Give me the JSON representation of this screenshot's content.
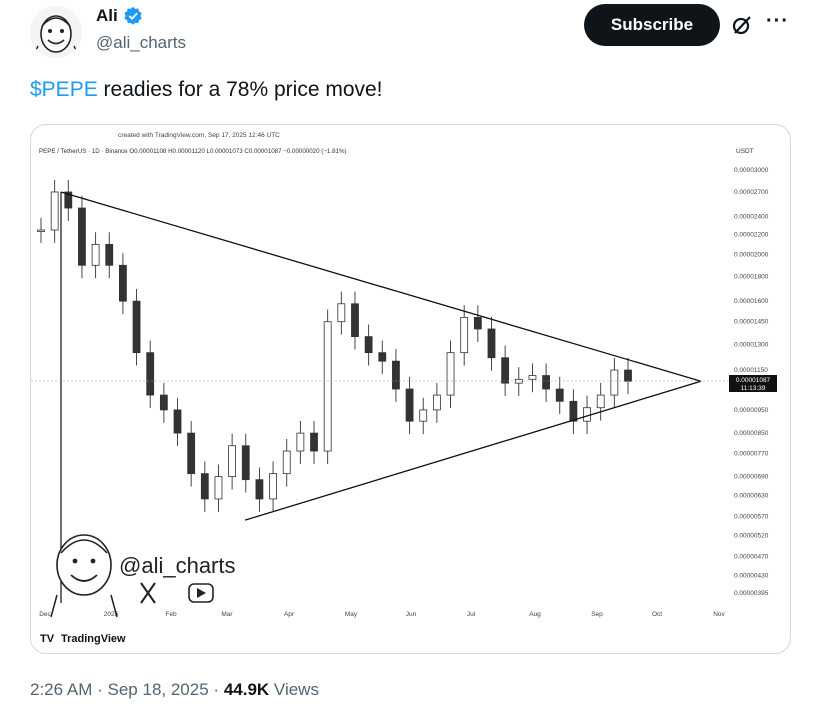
{
  "author": {
    "display_name": "Ali",
    "handle": "@ali_charts",
    "verified": true
  },
  "actions": {
    "subscribe_label": "Subscribe"
  },
  "tweet": {
    "cashtag": "$PEPE",
    "text_rest": " readies for a 78% price move!"
  },
  "meta": {
    "time": "2:26 AM",
    "separator": "·",
    "date": "Sep 18, 2025",
    "views_count": "44.9K",
    "views_label": "Views"
  },
  "chart_data": {
    "type": "line",
    "header_line": "created with TradingView.com, Sep 17, 2025 12:46 UTC",
    "symbol_line": "PEPE / TetherUS · 1D · Binance  O0.00001108  H0.00001120  L0.00001073  C0.00001087  −0.00000020 (−1.81%)",
    "currency": "USDT",
    "price_ticks": [
      "0.00003000",
      "0.00002700",
      "0.00002400",
      "0.00002200",
      "0.00002000",
      "0.00001800",
      "0.00001600",
      "0.00001450",
      "0.00001300",
      "0.00001150",
      "0.00000950",
      "0.00000850",
      "0.00000770",
      "0.00000690",
      "0.00000630",
      "0.00000570",
      "0.00000520",
      "0.00000470",
      "0.00000430",
      "0.00000395"
    ],
    "current_price": "0.00001087",
    "countdown": "11:13:39",
    "x_ticks": [
      "Dec",
      "2025",
      "Feb",
      "Mar",
      "Apr",
      "May",
      "Jun",
      "Jul",
      "Aug",
      "Sep",
      "Oct",
      "Nov"
    ],
    "scale": "log",
    "watermark_handle": "@ali_charts",
    "brand": "TradingView",
    "series": [
      {
        "values": [
          2.25e-05,
          2.7e-05,
          2.5e-05,
          1.9e-05,
          2.1e-05,
          1.9e-05,
          1.6e-05,
          1.25e-05,
          1.02e-05,
          9.5e-06,
          8.5e-06,
          7e-06,
          6.2e-06,
          6.9e-06,
          8e-06,
          6.8e-06,
          6.2e-06,
          7e-06,
          7.8e-06,
          8.5e-06,
          7.8e-06,
          1.45e-05,
          1.58e-05,
          1.35e-05,
          1.25e-05,
          1.2e-05,
          1.05e-05,
          9e-06,
          9.5e-06,
          1.02e-05,
          1.25e-05,
          1.48e-05,
          1.4e-05,
          1.22e-05,
          1.08e-05,
          1.1e-05,
          1.12e-05,
          1.05e-05,
          9.9e-06,
          9e-06,
          9.6e-06,
          1.02e-05,
          1.15e-05,
          1.09e-05
        ]
      }
    ],
    "trendlines": [
      {
        "from": [
          "Dec",
          2.7e-05
        ],
        "to": [
          "Oct",
          1.09e-05
        ]
      },
      {
        "from": [
          "Mar",
          5.6e-06
        ],
        "to": [
          "Oct",
          1.09e-05
        ]
      }
    ]
  }
}
